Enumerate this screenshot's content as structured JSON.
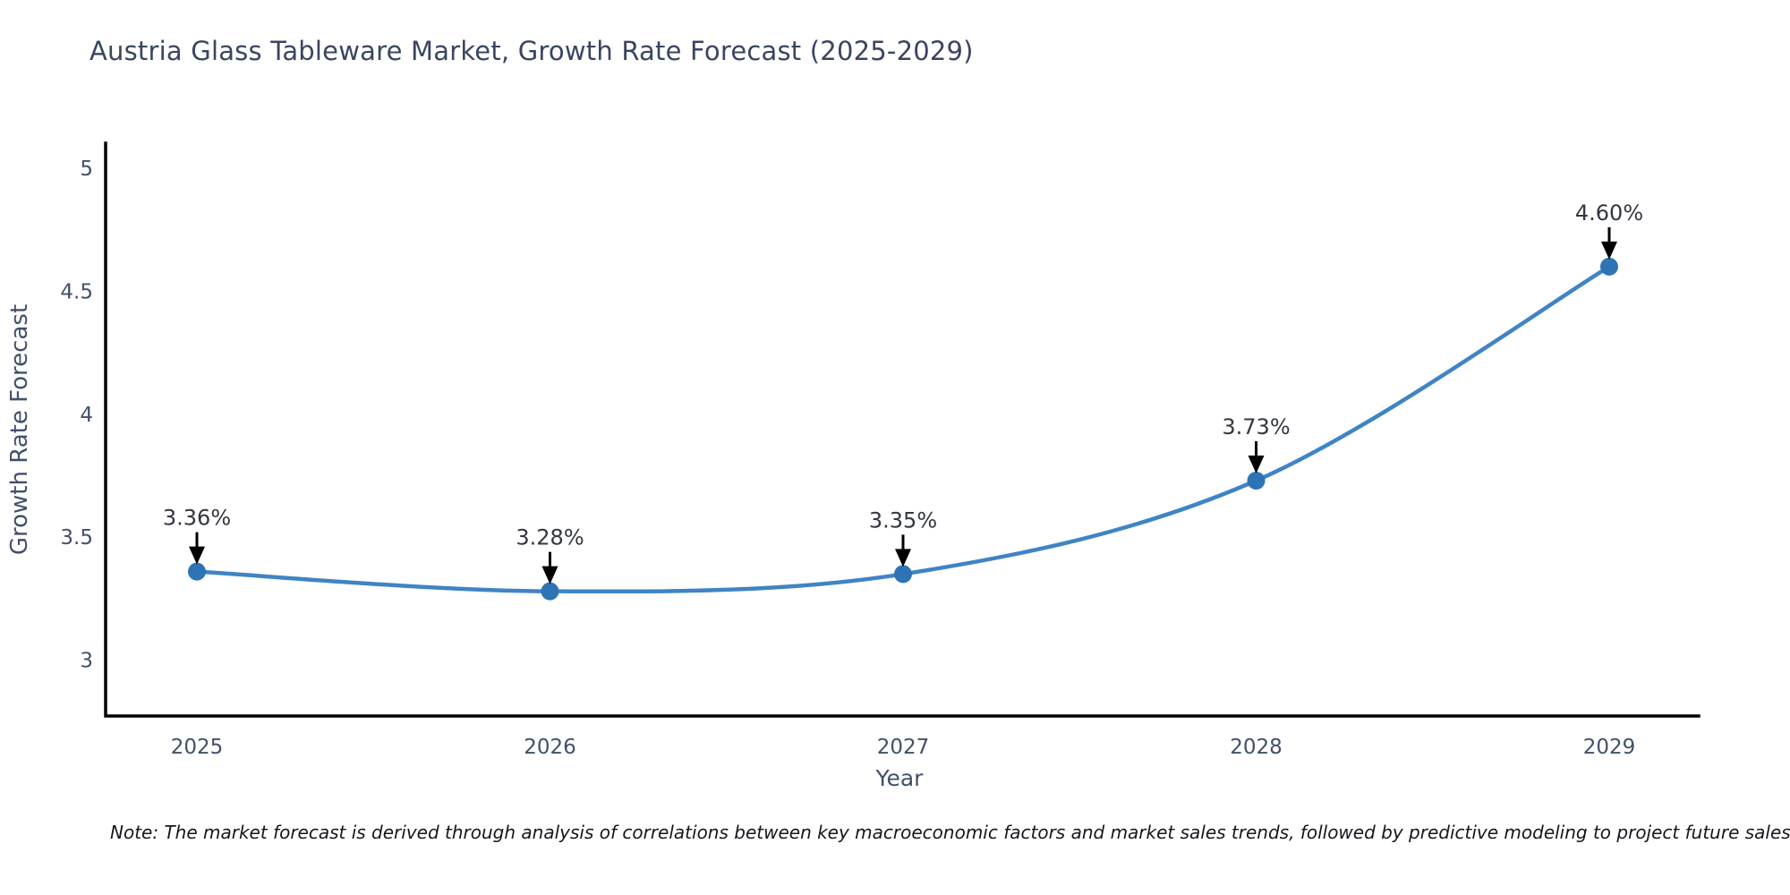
{
  "title": "Austria Glass Tableware Market, Growth Rate Forecast (2025-2029)",
  "note": "Note: The market forecast is derived through analysis of correlations between key macroeconomic factors and market sales trends, followed by predictive modeling to project future sales",
  "colors": {
    "background": "#ffffff",
    "line": "#3f84c4",
    "marker": "#2e74b5",
    "axis": "#000000",
    "tick_label": "#42506b",
    "axis_title": "#42506b",
    "title_text": "#3a4560",
    "annotation_text": "#33373f",
    "arrow": "#000000",
    "note_text": "#16161f"
  },
  "chart_data": {
    "type": "line",
    "title": "Austria Glass Tableware Market, Growth Rate Forecast (2025-2029)",
    "x": [
      "2025",
      "2026",
      "2027",
      "2028",
      "2029"
    ],
    "values": [
      3.36,
      3.28,
      3.35,
      3.73,
      4.6
    ],
    "point_labels": [
      "3.36%",
      "3.28%",
      "3.35%",
      "3.73%",
      "4.60%"
    ],
    "xlabel": "Year",
    "ylabel": "Growth Rate Forecast",
    "yticks": [
      3,
      3.5,
      4,
      4.5,
      5
    ],
    "ylim": [
      2.77,
      5.1
    ],
    "grid": false,
    "legend": "none",
    "line_shape": "spline",
    "markers": true,
    "annotation_style": "value labels above points with downward black arrows"
  }
}
